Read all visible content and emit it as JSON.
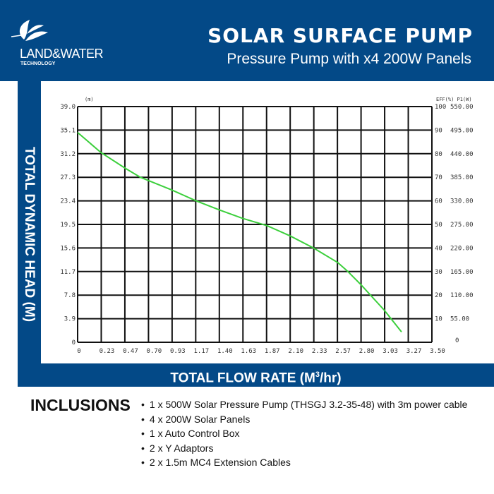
{
  "header": {
    "logo_text": "LAND&WATER",
    "logo_sub": "TECHNOLOGY",
    "title": "SOLAR SURFACE PUMP",
    "subtitle": "Pressure Pump with x4 200W Panels",
    "color": "#034987"
  },
  "axis_labels": {
    "y": "TOTAL DYNAMIC HEAD (M)",
    "x": "TOTAL FLOW RATE (M",
    "x_sup": "3",
    "x_end": "/hr)"
  },
  "chart_data": {
    "type": "line",
    "left_unit": "(m)",
    "right_unit": "EFF(%) P1(W)",
    "x_ticks": [
      "0",
      "0.23",
      "0.47",
      "0.70",
      "0.93",
      "1.17",
      "1.40",
      "1.63",
      "1.87",
      "2.10",
      "2.33",
      "2.57",
      "2.80",
      "3.03",
      "3.27",
      "3.50"
    ],
    "y_ticks": [
      "39.0",
      "35.1",
      "31.2",
      "27.3",
      "23.4",
      "19.5",
      "15.6",
      "11.7",
      "7.8",
      "3.9",
      "0"
    ],
    "eff_ticks": [
      "100",
      "90",
      "80",
      "70",
      "60",
      "50",
      "40",
      "30",
      "20",
      "10"
    ],
    "p1_ticks": [
      "550.00",
      "495.00",
      "440.00",
      "385.00",
      "330.00",
      "275.00",
      "220.00",
      "165.00",
      "110.00",
      "55.00"
    ],
    "right_zero": "0",
    "xlim": [
      0,
      3.5
    ],
    "ylim": [
      0,
      39
    ],
    "grid": true,
    "series": [
      {
        "color": "#3ccf3c",
        "x": [
          0,
          0.23,
          0.47,
          0.62,
          0.93,
          1.17,
          1.4,
          1.63,
          1.87,
          2.1,
          2.33,
          2.57,
          2.67,
          2.8,
          3.03,
          3.2
        ],
        "y": [
          34.7,
          31.4,
          28.8,
          27.3,
          25.2,
          23.4,
          21.9,
          20.5,
          19.3,
          17.6,
          15.6,
          13.2,
          11.7,
          9.5,
          5.3,
          1.7
        ]
      }
    ]
  },
  "inclusions": {
    "title": "INCLUSIONS",
    "items": [
      "1 x 500W Solar Pressure Pump (THSGJ 3.2-35-48) with 3m power cable",
      "4 x 200W Solar Panels",
      "1 x Auto Control Box",
      "2 x Y Adaptors",
      "2 x 1.5m MC4 Extension Cables"
    ]
  }
}
